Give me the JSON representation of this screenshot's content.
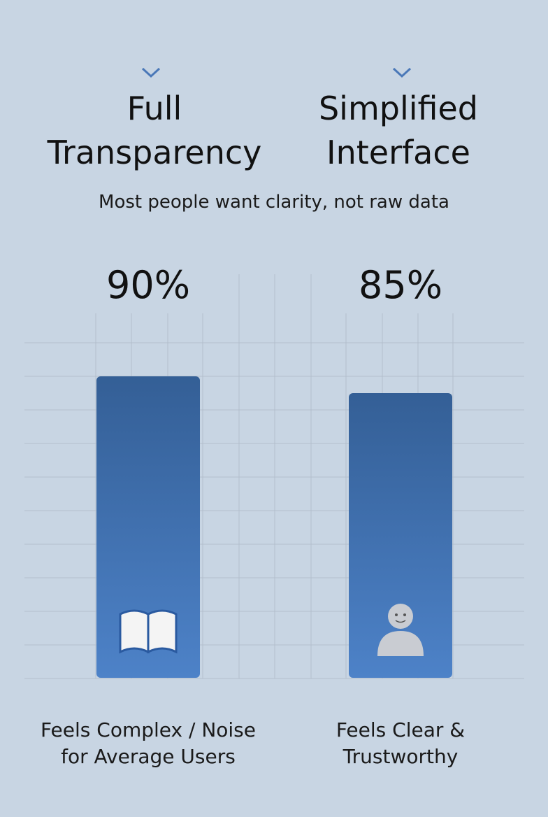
{
  "chart_data": {
    "type": "bar",
    "categories": [
      "Full\nTransparency",
      "Simplified\nInterface"
    ],
    "subtitle": "Most people want clarity, not raw data",
    "values": [
      90,
      85
    ],
    "value_labels": [
      "90%",
      "85%"
    ],
    "descriptions": [
      "Feels Complex / Noise\nfor Average Users",
      "Feels Clear &\nTrustworthy"
    ],
    "color": "#4477bb"
  }
}
